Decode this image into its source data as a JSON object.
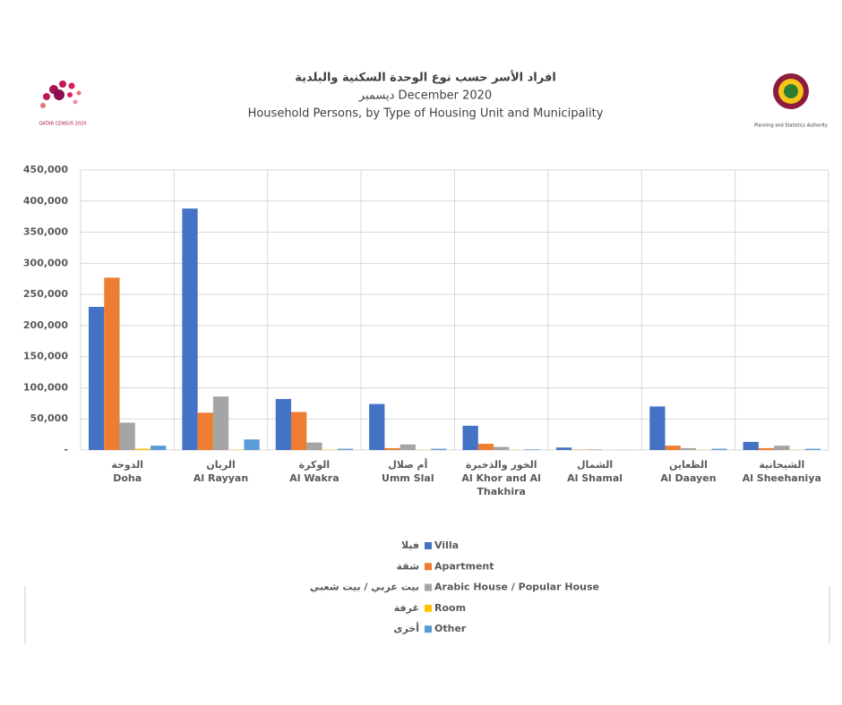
{
  "logos": {
    "left": "QATAR CENSUS 2020",
    "right": "Planning and Statistics Authority"
  },
  "chart_data": {
    "type": "bar",
    "title_ar": "افراد الأسر حسب نوع الوحدة السكنية والبلدية",
    "subtitle": "ديسمبر December 2020",
    "title": "Household Persons, by Type of Housing Unit and Municipality",
    "categories": [
      [
        "الدوحة",
        "Doha"
      ],
      [
        "الريان",
        "Al Rayyan"
      ],
      [
        "الوكرة",
        "Al Wakra"
      ],
      [
        "أم صلال",
        "Umm Slal"
      ],
      [
        "الخور والذخيرة",
        "Al Khor and Al Thakhira"
      ],
      [
        "الشمال",
        "Al Shamal"
      ],
      [
        "الظعاين",
        "Al Daayen"
      ],
      [
        "الشيحانية",
        "Al Sheehaniya"
      ]
    ],
    "series": [
      {
        "name": "Villa",
        "name_ar": "فيلا",
        "color": "#4472c4",
        "values": [
          230000,
          388000,
          82000,
          74000,
          39000,
          4000,
          70000,
          13000
        ]
      },
      {
        "name": "Apartment",
        "name_ar": "شقة",
        "color": "#ed7d31",
        "values": [
          277000,
          60000,
          61000,
          3000,
          10000,
          500,
          7000,
          3000
        ]
      },
      {
        "name": "Arabic House / Popular House",
        "name_ar": "بيت عربي / بيت شعبي",
        "color": "#a5a5a5",
        "values": [
          44000,
          86000,
          12000,
          9000,
          5000,
          1000,
          3000,
          7000
        ]
      },
      {
        "name": "Room",
        "name_ar": "غرفة",
        "color": "#ffc000",
        "values": [
          2000,
          500,
          500,
          300,
          300,
          0,
          300,
          300
        ]
      },
      {
        "name": "Other",
        "name_ar": "أخرى",
        "color": "#5b9bd5",
        "values": [
          7000,
          17000,
          2000,
          2000,
          1000,
          300,
          2000,
          2000
        ]
      }
    ],
    "ylim": [
      0,
      450000
    ],
    "yticks": [
      {
        "value": 0,
        "label": "-"
      },
      {
        "value": 50000,
        "label": "50,000"
      },
      {
        "value": 100000,
        "label": "100,000"
      },
      {
        "value": 150000,
        "label": "150,000"
      },
      {
        "value": 200000,
        "label": "200,000"
      },
      {
        "value": 250000,
        "label": "250,000"
      },
      {
        "value": 300000,
        "label": "300,000"
      },
      {
        "value": 350000,
        "label": "350,000"
      },
      {
        "value": 400000,
        "label": "400,000"
      },
      {
        "value": 450000,
        "label": "450,000"
      }
    ],
    "grid": true
  }
}
